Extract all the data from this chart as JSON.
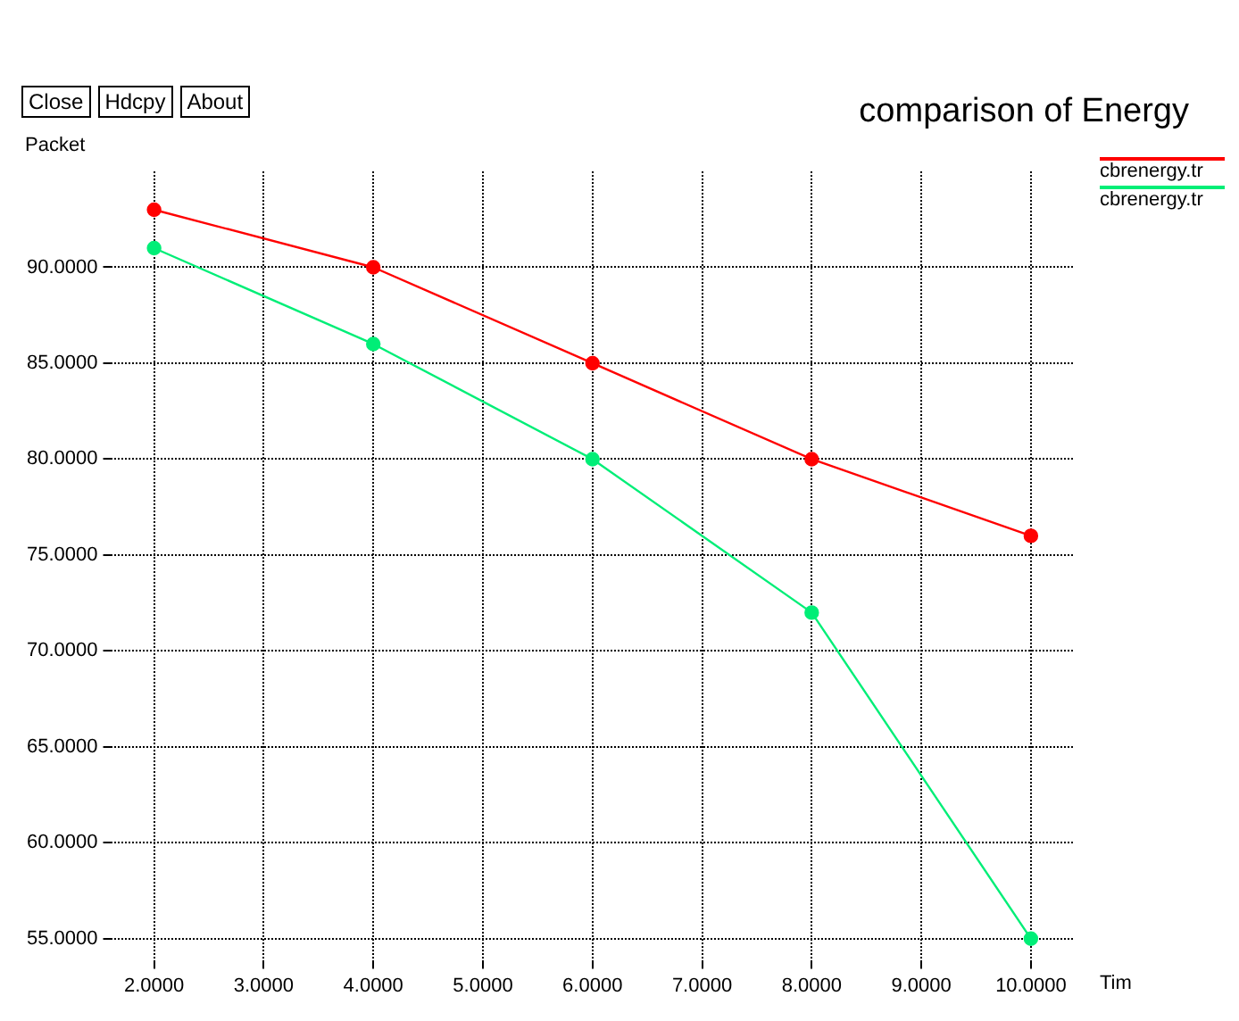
{
  "chart_data": {
    "type": "line",
    "title": "comparison of Energy",
    "xlabel": "Tim",
    "ylabel": "Packet",
    "annotations": [
      "Close",
      "Hdcpy",
      "About"
    ],
    "x": [
      2,
      4,
      6,
      8,
      10
    ],
    "series": [
      {
        "name": "cbrenergy.tr",
        "color": "#ff0000",
        "values": [
          93,
          90,
          85,
          80,
          76
        ]
      },
      {
        "name": "cbrenergy.tr",
        "color": "#00ee77",
        "values": [
          91,
          86,
          80,
          72,
          55
        ]
      }
    ],
    "xlim": [
      1.6,
      10.4
    ],
    "xticks": [
      {
        "value": 2,
        "label": "2.0000"
      },
      {
        "value": 3,
        "label": "3.0000"
      },
      {
        "value": 4,
        "label": "4.0000"
      },
      {
        "value": 5,
        "label": "5.0000"
      },
      {
        "value": 6,
        "label": "6.0000"
      },
      {
        "value": 7,
        "label": "7.0000"
      },
      {
        "value": 8,
        "label": "8.0000"
      },
      {
        "value": 9,
        "label": "9.0000"
      },
      {
        "value": 10,
        "label": "10.0000"
      }
    ],
    "ylim": [
      53.8,
      95
    ],
    "yticks": [
      {
        "value": 55,
        "label": "55.0000"
      },
      {
        "value": 60,
        "label": "60.0000"
      },
      {
        "value": 65,
        "label": "65.0000"
      },
      {
        "value": 70,
        "label": "70.0000"
      },
      {
        "value": 75,
        "label": "75.0000"
      },
      {
        "value": 80,
        "label": "80.0000"
      },
      {
        "value": 85,
        "label": "85.0000"
      },
      {
        "value": 90,
        "label": "90.0000"
      }
    ],
    "grid": true,
    "legend": "right",
    "marker": "circle",
    "line_style": "solid"
  }
}
